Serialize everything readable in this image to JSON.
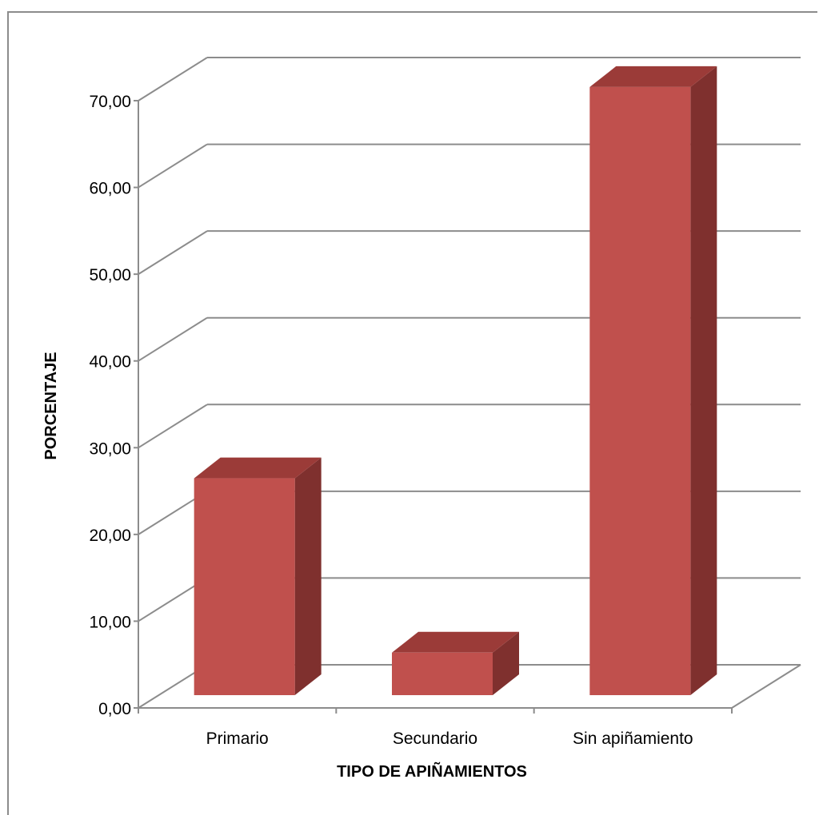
{
  "chart_data": {
    "type": "bar",
    "categories": [
      "Primario",
      "Secundario",
      "Sin apiñamiento"
    ],
    "values": [
      25.0,
      4.9,
      70.1
    ],
    "title": "",
    "xlabel": "TIPO DE APIÑAMIENTOS",
    "ylabel": "PORCENTAJE",
    "ylim": [
      0,
      70
    ],
    "ytick_values": [
      0,
      10,
      20,
      30,
      40,
      50,
      60,
      70
    ],
    "ytick_labels": [
      "0,00",
      "10,00",
      "20,00",
      "30,00",
      "40,00",
      "50,00",
      "60,00",
      "70,00"
    ],
    "grid": true,
    "legend": "none",
    "style": "3d-column",
    "colors": {
      "bar_front": "#c0504d",
      "bar_top": "#9b3b38",
      "bar_side": "#7f302e",
      "grid": "#8c8c8c"
    }
  }
}
